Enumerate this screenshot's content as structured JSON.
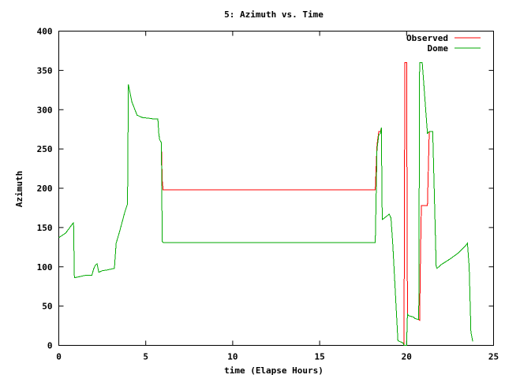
{
  "chart_data": {
    "type": "line",
    "title": "5: Azimuth vs. Time",
    "xlabel": "time (Elapse Hours)",
    "ylabel": "Azimuth",
    "xlim": [
      0,
      25
    ],
    "ylim": [
      0,
      400
    ],
    "x_ticks": [
      0,
      5,
      10,
      15,
      20,
      25
    ],
    "y_ticks": [
      0,
      50,
      100,
      150,
      200,
      250,
      300,
      350,
      400
    ],
    "grid": false,
    "legend_position": "top-right",
    "series": [
      {
        "name": "Observed",
        "color": "#ff0000",
        "x": [
          0,
          0.4,
          0.8,
          0.85,
          0.9,
          1.5,
          1.9,
          2.0,
          2.1,
          2.2,
          2.3,
          2.5,
          2.8,
          3.2,
          3.3,
          3.5,
          3.8,
          3.95,
          4.0,
          4.2,
          4.5,
          4.8,
          5.2,
          5.5,
          5.7,
          5.75,
          5.8,
          5.9,
          5.95,
          6.0,
          9,
          12,
          15,
          18.2,
          18.3,
          18.4,
          18.5,
          18.55,
          18.6,
          19.0,
          19.1,
          19.2,
          19.5,
          19.6,
          19.8,
          19.85,
          19.9,
          20.0,
          20.05,
          20.1,
          20.4,
          20.5,
          20.7,
          20.75,
          20.8,
          20.85,
          20.9,
          21.2,
          21.3,
          21.5,
          21.7,
          21.75,
          22.0,
          22.5,
          23.0,
          23.4,
          23.5,
          23.6,
          23.7,
          23.8
        ],
        "y": [
          137,
          143,
          155,
          156,
          86,
          89,
          89,
          97,
          102,
          104,
          93,
          95,
          96,
          98,
          130,
          145,
          170,
          180,
          332,
          310,
          293,
          290,
          289,
          288,
          288,
          270,
          262,
          258,
          210,
          198,
          198,
          198,
          198,
          198,
          255,
          272,
          272,
          277,
          160,
          167,
          162,
          130,
          6,
          5,
          3,
          0,
          360,
          360,
          40,
          38,
          36,
          34,
          33,
          32,
          115,
          178,
          178,
          178,
          272,
          272,
          100,
          98,
          103,
          110,
          118,
          127,
          130,
          100,
          17,
          5
        ]
      },
      {
        "name": "Dome",
        "color": "#00aa00",
        "x": [
          0,
          0.4,
          0.8,
          0.85,
          0.9,
          1.5,
          1.9,
          2.0,
          2.1,
          2.2,
          2.3,
          2.5,
          2.8,
          3.2,
          3.3,
          3.5,
          3.8,
          3.95,
          4.0,
          4.2,
          4.5,
          4.8,
          5.2,
          5.5,
          5.7,
          5.75,
          5.8,
          5.9,
          5.95,
          6.0,
          9,
          12,
          15,
          18.2,
          18.3,
          18.4,
          18.5,
          18.55,
          18.6,
          19.0,
          19.1,
          19.2,
          19.5,
          19.6,
          19.8,
          19.85,
          19.9,
          20.0,
          20.05,
          20.1,
          20.4,
          20.5,
          20.7,
          20.75,
          20.8,
          20.85,
          20.9,
          21.2,
          21.3,
          21.5,
          21.7,
          21.75,
          22.0,
          22.5,
          23.0,
          23.4,
          23.5,
          23.6,
          23.7,
          23.8
        ],
        "y": [
          137,
          143,
          155,
          156,
          86,
          89,
          89,
          97,
          102,
          104,
          93,
          95,
          96,
          98,
          130,
          145,
          170,
          180,
          332,
          310,
          293,
          290,
          289,
          288,
          288,
          270,
          262,
          258,
          132,
          131,
          131,
          131,
          131,
          131,
          250,
          268,
          270,
          277,
          160,
          167,
          162,
          130,
          6,
          5,
          3,
          0,
          0,
          0,
          40,
          38,
          36,
          34,
          33,
          360,
          360,
          360,
          360,
          270,
          272,
          272,
          100,
          98,
          103,
          110,
          118,
          127,
          130,
          100,
          17,
          5
        ]
      }
    ]
  }
}
